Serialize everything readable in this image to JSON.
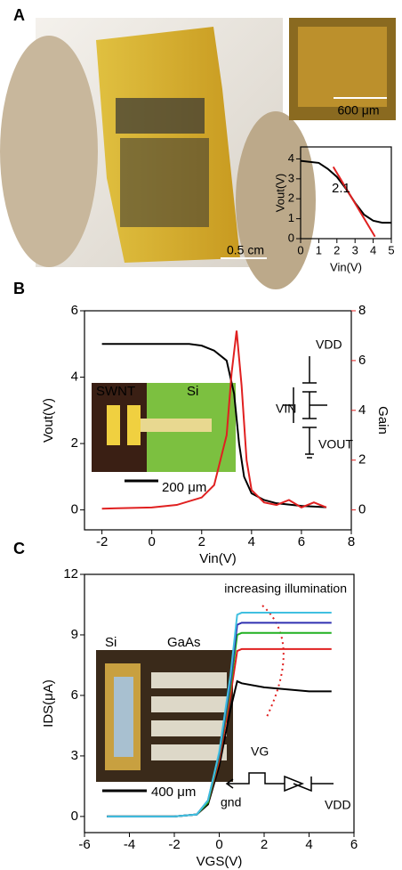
{
  "chart_data": [
    {
      "type": "line",
      "panel": "A",
      "xlabel": "Vin(V)",
      "ylabel": "Vout(V)",
      "x": [
        0,
        1,
        1.5,
        2,
        2.5,
        3,
        3.5,
        4,
        4.5,
        5
      ],
      "series": [
        {
          "color": "#000000",
          "values": [
            3.9,
            3.8,
            3.5,
            3.1,
            2.5,
            1.8,
            1.2,
            0.9,
            0.8,
            0.8
          ]
        },
        {
          "color": "#e02020",
          "x": [
            1.8,
            4.1
          ],
          "values": [
            3.6,
            0.1
          ]
        }
      ],
      "xlim": [
        0,
        5
      ],
      "ylim": [
        0,
        4.6
      ],
      "xticks": [
        0,
        1,
        2,
        3,
        4,
        5
      ],
      "yticks": [
        0,
        1,
        2,
        3,
        4
      ],
      "annotations": [
        "2.1",
        "0.5 cm",
        "600 μm"
      ]
    },
    {
      "type": "line",
      "panel": "B",
      "xlabel": "Vin(V)",
      "ylabel": "Vout(V)",
      "y2label": "Gain",
      "series": [
        {
          "color": "#000000",
          "x": [
            -2,
            1.5,
            2,
            2.5,
            3,
            3.3,
            3.5,
            3.7,
            4,
            4.5,
            5,
            6,
            7
          ],
          "values": [
            5,
            5,
            4.95,
            4.8,
            4.5,
            3.5,
            2,
            1,
            0.5,
            0.3,
            0.2,
            0.12,
            0.08
          ]
        },
        {
          "color": "#e02020",
          "axis": "y2",
          "x": [
            -2,
            0,
            1,
            2,
            2.5,
            3,
            3.2,
            3.4,
            3.6,
            3.8,
            4,
            4.5,
            5,
            5.5,
            6,
            6.5,
            7
          ],
          "values": [
            0.05,
            0.1,
            0.2,
            0.5,
            1,
            3,
            5.5,
            7.2,
            5,
            2,
            0.8,
            0.3,
            0.2,
            0.4,
            0.1,
            0.3,
            0.1
          ]
        }
      ],
      "xlim": [
        -2.7,
        8
      ],
      "ylim": [
        -0.6,
        6
      ],
      "y2lim": [
        -0.8,
        8
      ],
      "xticks": [
        -2,
        0,
        2,
        4,
        6,
        8
      ],
      "yticks": [
        0,
        2,
        4,
        6
      ],
      "y2ticks": [
        0,
        2,
        4,
        6,
        8
      ],
      "annotations": [
        "SWNT",
        "Si",
        "200 μm",
        "VDD",
        "VIN",
        "VOUT"
      ]
    },
    {
      "type": "line",
      "panel": "C",
      "xlabel": "VGS(V)",
      "ylabel": "IDS(μA)",
      "x": [
        -5,
        -2,
        -1,
        -0.5,
        0,
        0.5,
        0.8,
        1,
        2,
        3,
        4,
        5
      ],
      "series": [
        {
          "color": "#000000",
          "values": [
            0,
            0,
            0.1,
            0.6,
            2.5,
            5.3,
            6.7,
            6.6,
            6.4,
            6.3,
            6.2,
            6.2
          ]
        },
        {
          "color": "#e02020",
          "values": [
            0,
            0,
            0.1,
            0.7,
            2.8,
            6,
            8.2,
            8.3,
            8.3,
            8.3,
            8.3,
            8.3
          ]
        },
        {
          "color": "#20b020",
          "values": [
            0,
            0,
            0.1,
            0.7,
            3,
            6.4,
            9,
            9.1,
            9.1,
            9.1,
            9.1,
            9.1
          ]
        },
        {
          "color": "#3030b0",
          "values": [
            0,
            0,
            0.1,
            0.8,
            3.1,
            6.7,
            9.5,
            9.6,
            9.6,
            9.6,
            9.6,
            9.6
          ]
        },
        {
          "color": "#40c0e0",
          "values": [
            0,
            0,
            0.1,
            0.8,
            3.2,
            7,
            10,
            10.1,
            10.1,
            10.1,
            10.1,
            10.1
          ]
        }
      ],
      "xlim": [
        -6,
        6
      ],
      "ylim": [
        -0.8,
        12
      ],
      "xticks": [
        -6,
        -4,
        -2,
        0,
        2,
        4,
        6
      ],
      "yticks": [
        0,
        3,
        6,
        9,
        12
      ],
      "annotations": [
        "increasing illumination",
        "Si",
        "GaAs",
        "400 μm",
        "VG",
        "gnd",
        "VDD"
      ]
    }
  ]
}
